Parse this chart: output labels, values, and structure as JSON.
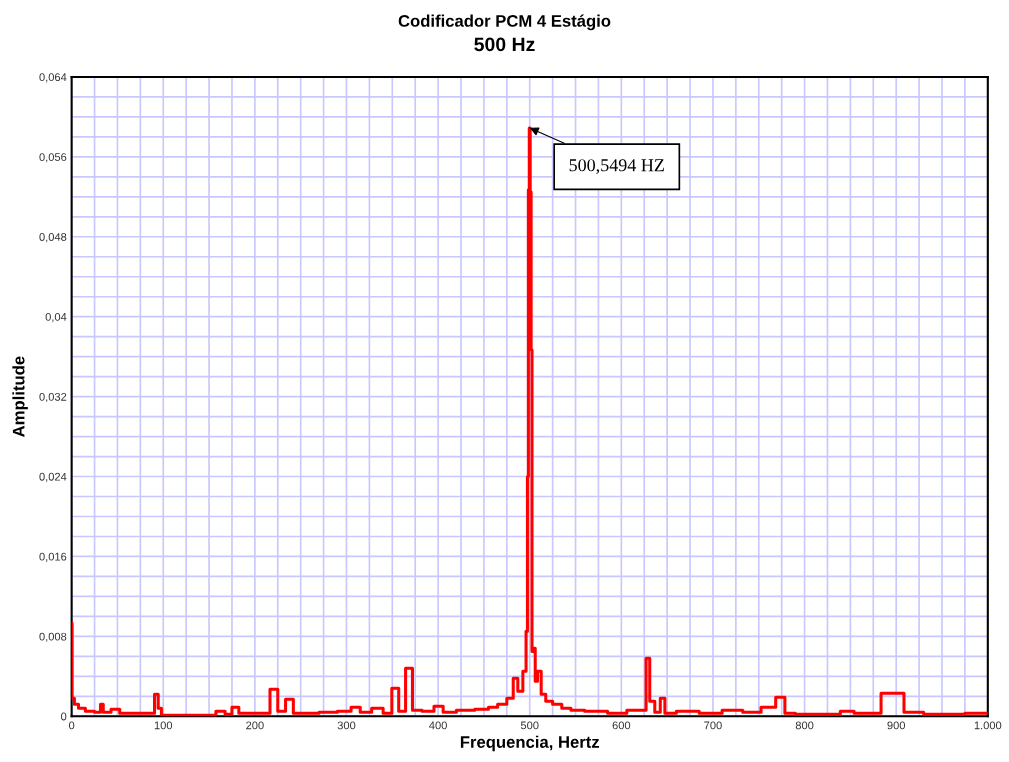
{
  "chart_data": {
    "type": "step",
    "title": "Codificador PCM 4 Estágio",
    "subtitle": "500 Hz",
    "xlabel": "Frequencia, Hertz",
    "ylabel": "Amplitude",
    "x": [
      0,
      1,
      5,
      10,
      20,
      30,
      33,
      36,
      50,
      55,
      70,
      88,
      93,
      96,
      100,
      150,
      165,
      170,
      180,
      185,
      210,
      223,
      227,
      240,
      244,
      260,
      280,
      300,
      310,
      320,
      335,
      345,
      354,
      360,
      369,
      375,
      390,
      401,
      410,
      430,
      450,
      460,
      470,
      480,
      484,
      490,
      495,
      497,
      498,
      499,
      500,
      501,
      502,
      503,
      505,
      507,
      510,
      515,
      520,
      530,
      540,
      550,
      570,
      600,
      612,
      625,
      629,
      633,
      640,
      645,
      650,
      670,
      700,
      720,
      745,
      760,
      777,
      780,
      800,
      830,
      848,
      860,
      907,
      910,
      950,
      1000
    ],
    "series": [
      {
        "color": "#ff0000",
        "values": [
          0.0093,
          0.0018,
          0.0012,
          0.0008,
          0.0005,
          0.0004,
          0.0012,
          0.0004,
          0.0007,
          0.0003,
          0.0003,
          0.0003,
          0.0022,
          0.0008,
          0.0001,
          0.0001,
          0.0005,
          0.0002,
          0.0009,
          0.0003,
          0.0003,
          0.0027,
          0.0005,
          0.0017,
          0.0003,
          0.0003,
          0.0004,
          0.0005,
          0.0009,
          0.0004,
          0.0008,
          0.0003,
          0.0028,
          0.0005,
          0.0048,
          0.0006,
          0.0005,
          0.001,
          0.0004,
          0.0006,
          0.0007,
          0.0009,
          0.0012,
          0.0018,
          0.0038,
          0.0025,
          0.0045,
          0.0085,
          0.024,
          0.0527,
          0.0589,
          0.0525,
          0.0367,
          0.0065,
          0.0068,
          0.0035,
          0.0045,
          0.0022,
          0.0015,
          0.0012,
          0.0008,
          0.0006,
          0.0005,
          0.0003,
          0.0006,
          0.0006,
          0.0058,
          0.0015,
          0.0004,
          0.0018,
          0.0003,
          0.0005,
          0.0003,
          0.0006,
          0.0004,
          0.0009,
          0.0019,
          0.0003,
          0.0002,
          0.0002,
          0.0005,
          0.0003,
          0.0023,
          0.0004,
          0.0002,
          0.0003
        ]
      }
    ],
    "annotations": [
      {
        "text": "500,5494 HZ",
        "x": 500,
        "y": 0.0589
      }
    ],
    "xlim": [
      0,
      1000
    ],
    "xticks": [
      0,
      {
        "value": 25,
        "label": null
      },
      {
        "value": 50,
        "label": null
      },
      {
        "value": 75,
        "label": null
      },
      100,
      {
        "value": 125,
        "label": null
      },
      {
        "value": 150,
        "label": null
      },
      {
        "value": 175,
        "label": null
      },
      200,
      {
        "value": 225,
        "label": null
      },
      {
        "value": 250,
        "label": null
      },
      {
        "value": 275,
        "label": null
      },
      300,
      {
        "value": 325,
        "label": null
      },
      {
        "value": 350,
        "label": null
      },
      {
        "value": 375,
        "label": null
      },
      400,
      {
        "value": 425,
        "label": null
      },
      {
        "value": 450,
        "label": null
      },
      {
        "value": 475,
        "label": null
      },
      500,
      {
        "value": 525,
        "label": null
      },
      {
        "value": 550,
        "label": null
      },
      {
        "value": 575,
        "label": null
      },
      600,
      {
        "value": 625,
        "label": null
      },
      {
        "value": 650,
        "label": null
      },
      {
        "value": 675,
        "label": null
      },
      700,
      {
        "value": 725,
        "label": null
      },
      {
        "value": 750,
        "label": null
      },
      {
        "value": 775,
        "label": null
      },
      800,
      {
        "value": 825,
        "label": null
      },
      {
        "value": 850,
        "label": null
      },
      {
        "value": 875,
        "label": null
      },
      900,
      {
        "value": 925,
        "label": null
      },
      {
        "value": 950,
        "label": null
      },
      {
        "value": 975,
        "label": null
      },
      {
        "value": 1000,
        "label": "1.000"
      }
    ],
    "ylim": [
      0,
      0.064
    ],
    "yticks": [
      0,
      {
        "value": 0.002,
        "label": null
      },
      {
        "value": 0.004,
        "label": null
      },
      {
        "value": 0.006,
        "label": null
      },
      {
        "value": 0.008,
        "label": "0,008"
      },
      {
        "value": 0.01,
        "label": null
      },
      {
        "value": 0.012,
        "label": null
      },
      {
        "value": 0.014,
        "label": null
      },
      {
        "value": 0.016,
        "label": "0,016"
      },
      {
        "value": 0.018,
        "label": null
      },
      {
        "value": 0.02,
        "label": null
      },
      {
        "value": 0.022,
        "label": null
      },
      {
        "value": 0.024,
        "label": "0,024"
      },
      {
        "value": 0.026,
        "label": null
      },
      {
        "value": 0.028,
        "label": null
      },
      {
        "value": 0.03,
        "label": null
      },
      {
        "value": 0.032,
        "label": "0,032"
      },
      {
        "value": 0.034,
        "label": null
      },
      {
        "value": 0.036,
        "label": null
      },
      {
        "value": 0.038,
        "label": null
      },
      {
        "value": 0.04,
        "label": "0,04"
      },
      {
        "value": 0.042,
        "label": null
      },
      {
        "value": 0.044,
        "label": null
      },
      {
        "value": 0.046,
        "label": null
      },
      {
        "value": 0.048,
        "label": "0,048"
      },
      {
        "value": 0.05,
        "label": null
      },
      {
        "value": 0.052,
        "label": null
      },
      {
        "value": 0.054,
        "label": null
      },
      {
        "value": 0.056,
        "label": "0,056"
      },
      {
        "value": 0.058,
        "label": null
      },
      {
        "value": 0.06,
        "label": null
      },
      {
        "value": 0.062,
        "label": null
      },
      {
        "value": 0.064,
        "label": "0,064"
      }
    ],
    "grid": true
  }
}
